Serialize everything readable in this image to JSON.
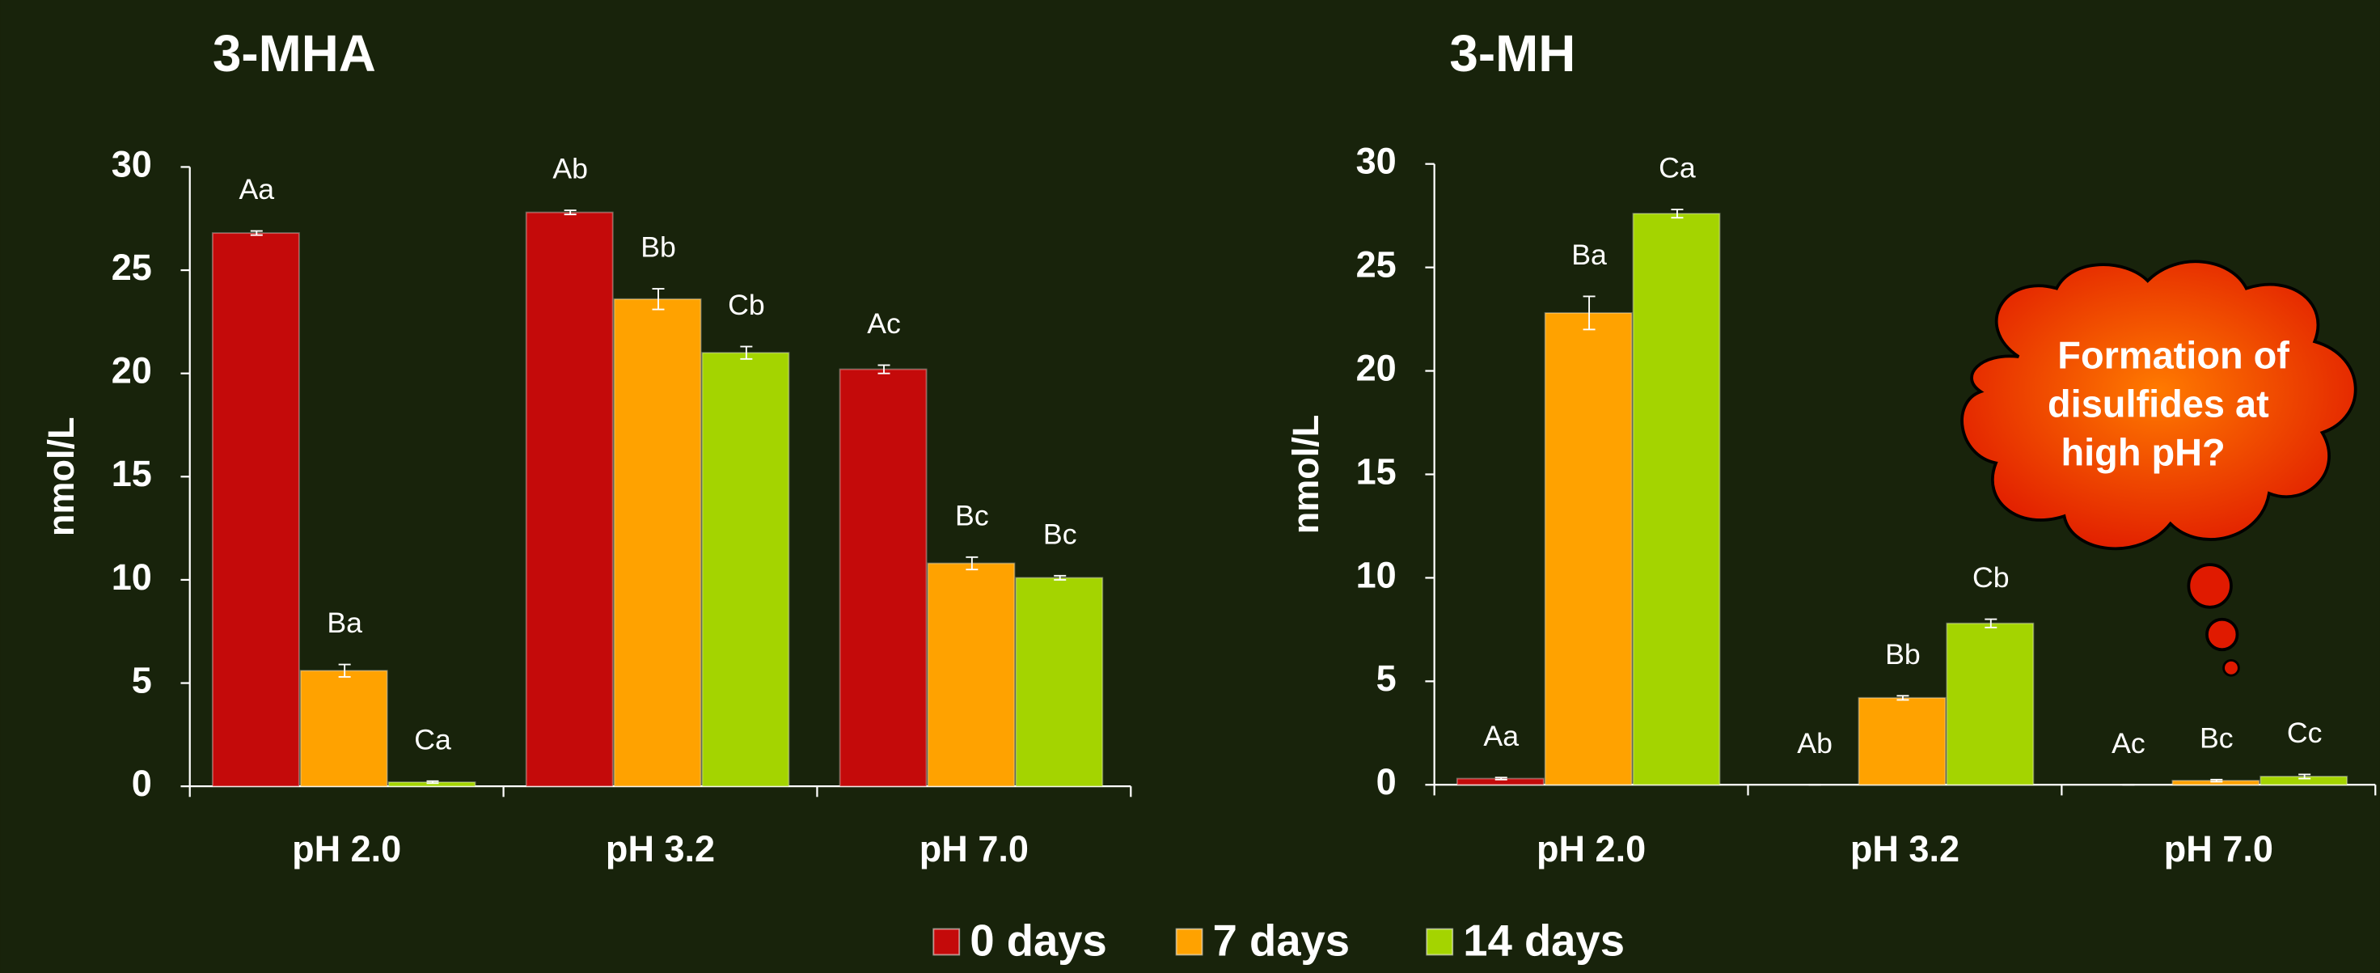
{
  "chart_data": [
    {
      "type": "bar",
      "title": "3-MHA",
      "y_label": "nmol/L",
      "categories": [
        "pH 2.0",
        "pH 3.2",
        "pH 7.0"
      ],
      "series": [
        {
          "name": "0 days",
          "color": "#c40a0a",
          "values": [
            26.8,
            27.8,
            20.2
          ],
          "errors": [
            0.1,
            0.1,
            0.2
          ],
          "annotations": [
            "Aa",
            "Ab",
            "Ac"
          ]
        },
        {
          "name": "7 days",
          "color": "#ffa200",
          "values": [
            5.6,
            23.6,
            10.8
          ],
          "errors": [
            0.3,
            0.5,
            0.3
          ],
          "annotations": [
            "Ba",
            "Bb",
            "Bc"
          ]
        },
        {
          "name": "14 days",
          "color": "#a4d400",
          "values": [
            0.2,
            21.0,
            10.1
          ],
          "errors": [
            0.05,
            0.3,
            0.1
          ],
          "annotations": [
            "Ca",
            "Cb",
            "Bc"
          ]
        }
      ],
      "ylim": [
        0,
        30
      ],
      "yticks": [
        0,
        5,
        10,
        15,
        20,
        25,
        30
      ],
      "grid": false
    },
    {
      "type": "bar",
      "title": "3-MH",
      "y_label": "nmol/L",
      "categories": [
        "pH 2.0",
        "pH 3.2",
        "pH 7.0"
      ],
      "series": [
        {
          "color": "#c40a0a",
          "values": [
            0.3,
            0,
            0
          ],
          "errors": [
            0.05,
            0,
            0
          ],
          "annotations": [
            "Aa",
            "Ab",
            "Ac"
          ]
        },
        {
          "color": "#ffa200",
          "values": [
            22.8,
            4.2,
            0.2
          ],
          "errors": [
            0.8,
            0.1,
            0.05
          ],
          "annotations": [
            "Ba",
            "Bb",
            "Bc"
          ]
        },
        {
          "color": "#a4d400",
          "values": [
            27.6,
            7.8,
            0.4
          ],
          "errors": [
            0.2,
            0.2,
            0.1
          ],
          "annotations": [
            "Ca",
            "Cb",
            "Cc"
          ]
        }
      ],
      "ylim": [
        0,
        30
      ],
      "yticks": [
        0,
        5,
        10,
        15,
        20,
        25,
        30
      ],
      "grid": false
    }
  ],
  "callout": [
    "Formation of",
    "disulfides at",
    "high pH?"
  ]
}
